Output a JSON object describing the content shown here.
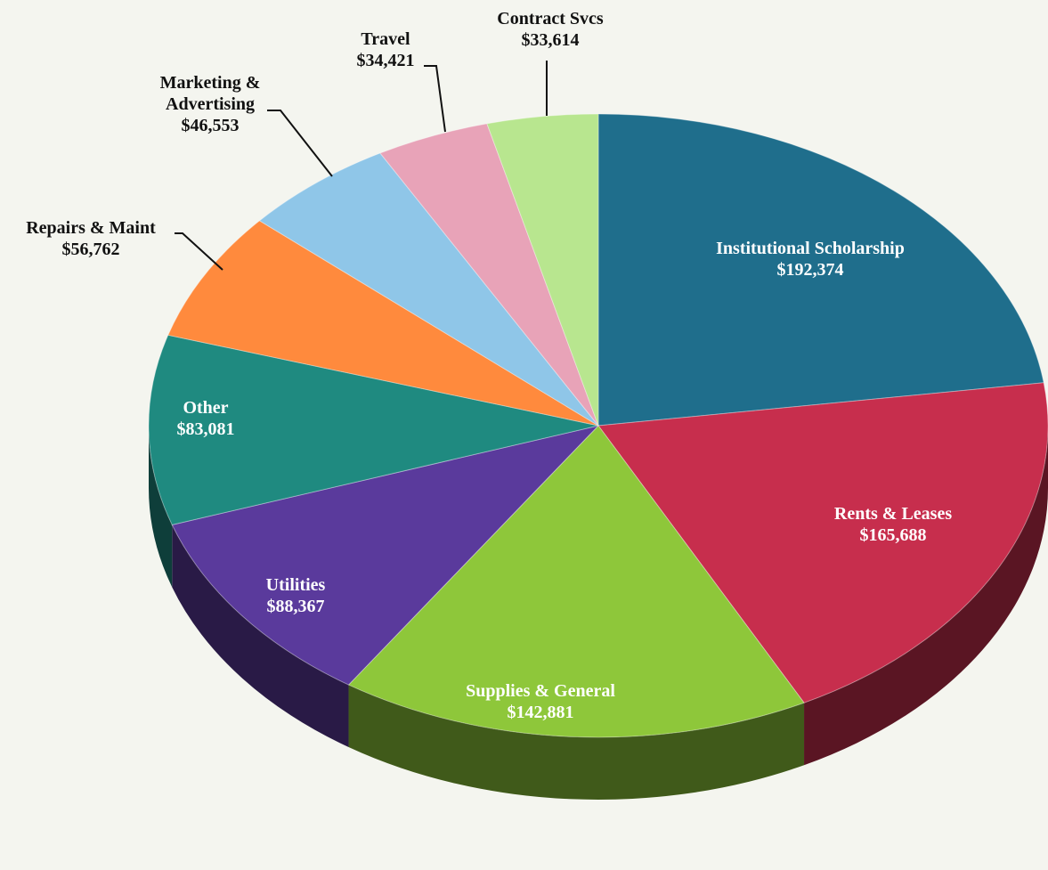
{
  "chart_data": {
    "type": "pie",
    "title": "",
    "start_from": "12 o'clock, clockwise",
    "slices": [
      {
        "label": "Institutional Scholarship",
        "value": 192374,
        "value_text": "$192,374",
        "color": "#1f6e8c",
        "label_position": "inside"
      },
      {
        "label": "Rents & Leases",
        "value": 165688,
        "value_text": "$165,688",
        "color": "#c72e4d",
        "label_position": "inside"
      },
      {
        "label": "Supplies & General",
        "value": 142881,
        "value_text": "$142,881",
        "color": "#8ec73a",
        "label_position": "inside"
      },
      {
        "label": "Utilities",
        "value": 88367,
        "value_text": "$88,367",
        "color": "#5a3a9c",
        "label_position": "inside"
      },
      {
        "label": "Other",
        "value": 83081,
        "value_text": "$83,081",
        "color": "#1f8a80",
        "label_position": "inside"
      },
      {
        "label": "Repairs & Maint",
        "value": 56762,
        "value_text": "$56,762",
        "color": "#ff8a3d",
        "label_position": "outside"
      },
      {
        "label": "Marketing & Advertising",
        "label_lines": [
          "Marketing &",
          "Advertising"
        ],
        "value": 46553,
        "value_text": "$46,553",
        "color": "#8fc6e8",
        "label_position": "outside"
      },
      {
        "label": "Travel",
        "value": 34421,
        "value_text": "$34,421",
        "color": "#e8a3b8",
        "label_position": "outside"
      },
      {
        "label": "Contract Svcs",
        "value": 33614,
        "value_text": "$33,614",
        "color": "#b8e68f",
        "label_position": "outside"
      }
    ]
  }
}
